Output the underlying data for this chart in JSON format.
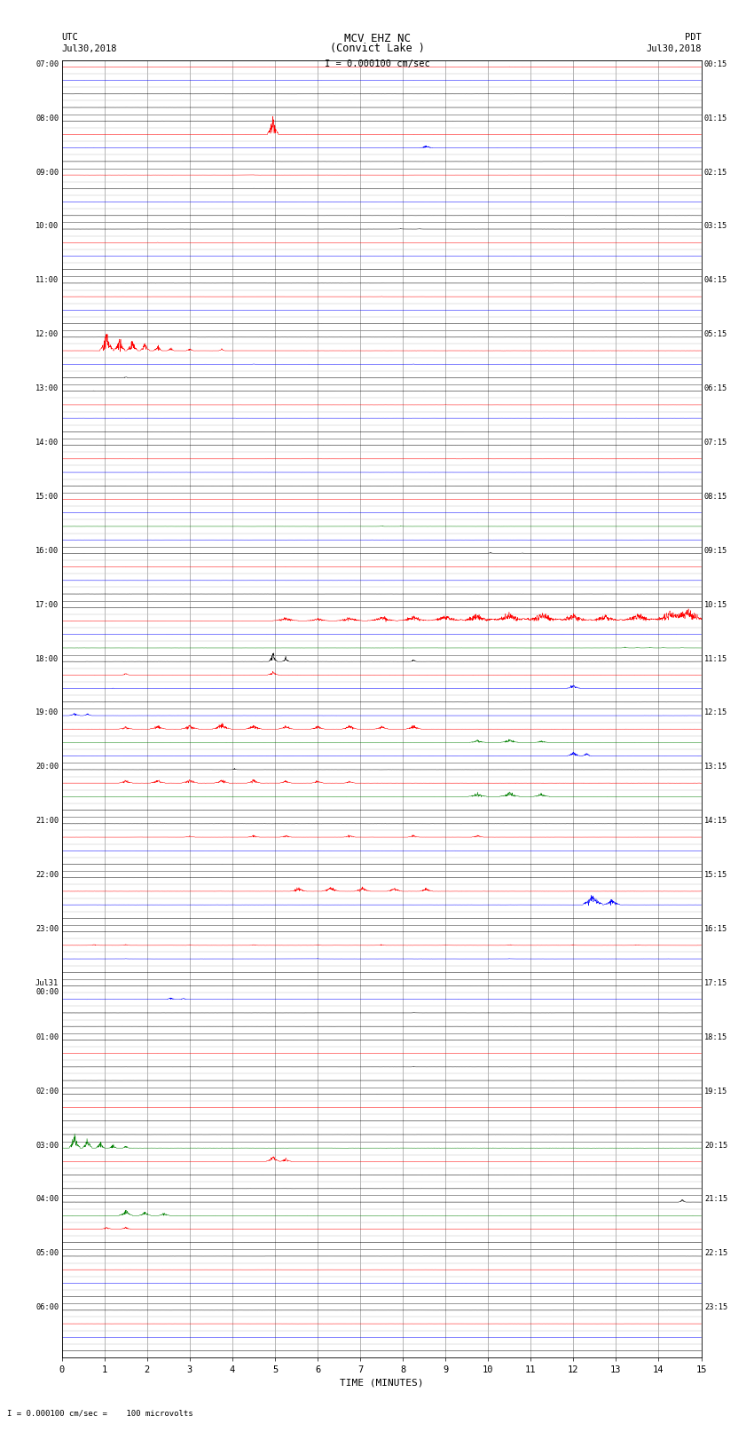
{
  "title_line1": "MCV EHZ NC",
  "title_line2": "(Convict Lake )",
  "title_scale": "I = 0.000100 cm/sec",
  "left_label_utc": "UTC",
  "left_label_date": "Jul30,2018",
  "right_label_pdt": "PDT",
  "right_label_date": "Jul30,2018",
  "xlabel": "TIME (MINUTES)",
  "footer": "I = 0.000100 cm/sec =    100 microvolts",
  "left_times": [
    "07:00",
    "08:00",
    "09:00",
    "10:00",
    "11:00",
    "12:00",
    "13:00",
    "14:00",
    "15:00",
    "16:00",
    "17:00",
    "18:00",
    "19:00",
    "20:00",
    "21:00",
    "22:00",
    "23:00",
    "Jul31\n00:00",
    "01:00",
    "02:00",
    "03:00",
    "04:00",
    "05:00",
    "06:00"
  ],
  "right_times": [
    "00:15",
    "01:15",
    "02:15",
    "03:15",
    "04:15",
    "05:15",
    "06:15",
    "07:15",
    "08:15",
    "09:15",
    "10:15",
    "11:15",
    "12:15",
    "13:15",
    "14:15",
    "15:15",
    "16:15",
    "17:15",
    "18:15",
    "19:15",
    "20:15",
    "21:15",
    "22:15",
    "23:15"
  ],
  "n_hours": 24,
  "sub_rows": 4,
  "x_min": 0,
  "x_max": 15,
  "x_ticks": [
    0,
    1,
    2,
    3,
    4,
    5,
    6,
    7,
    8,
    9,
    10,
    11,
    12,
    13,
    14,
    15
  ],
  "bg_color": "#ffffff",
  "grid_color_major": "#888888",
  "grid_color_minor": "#bbbbbb"
}
